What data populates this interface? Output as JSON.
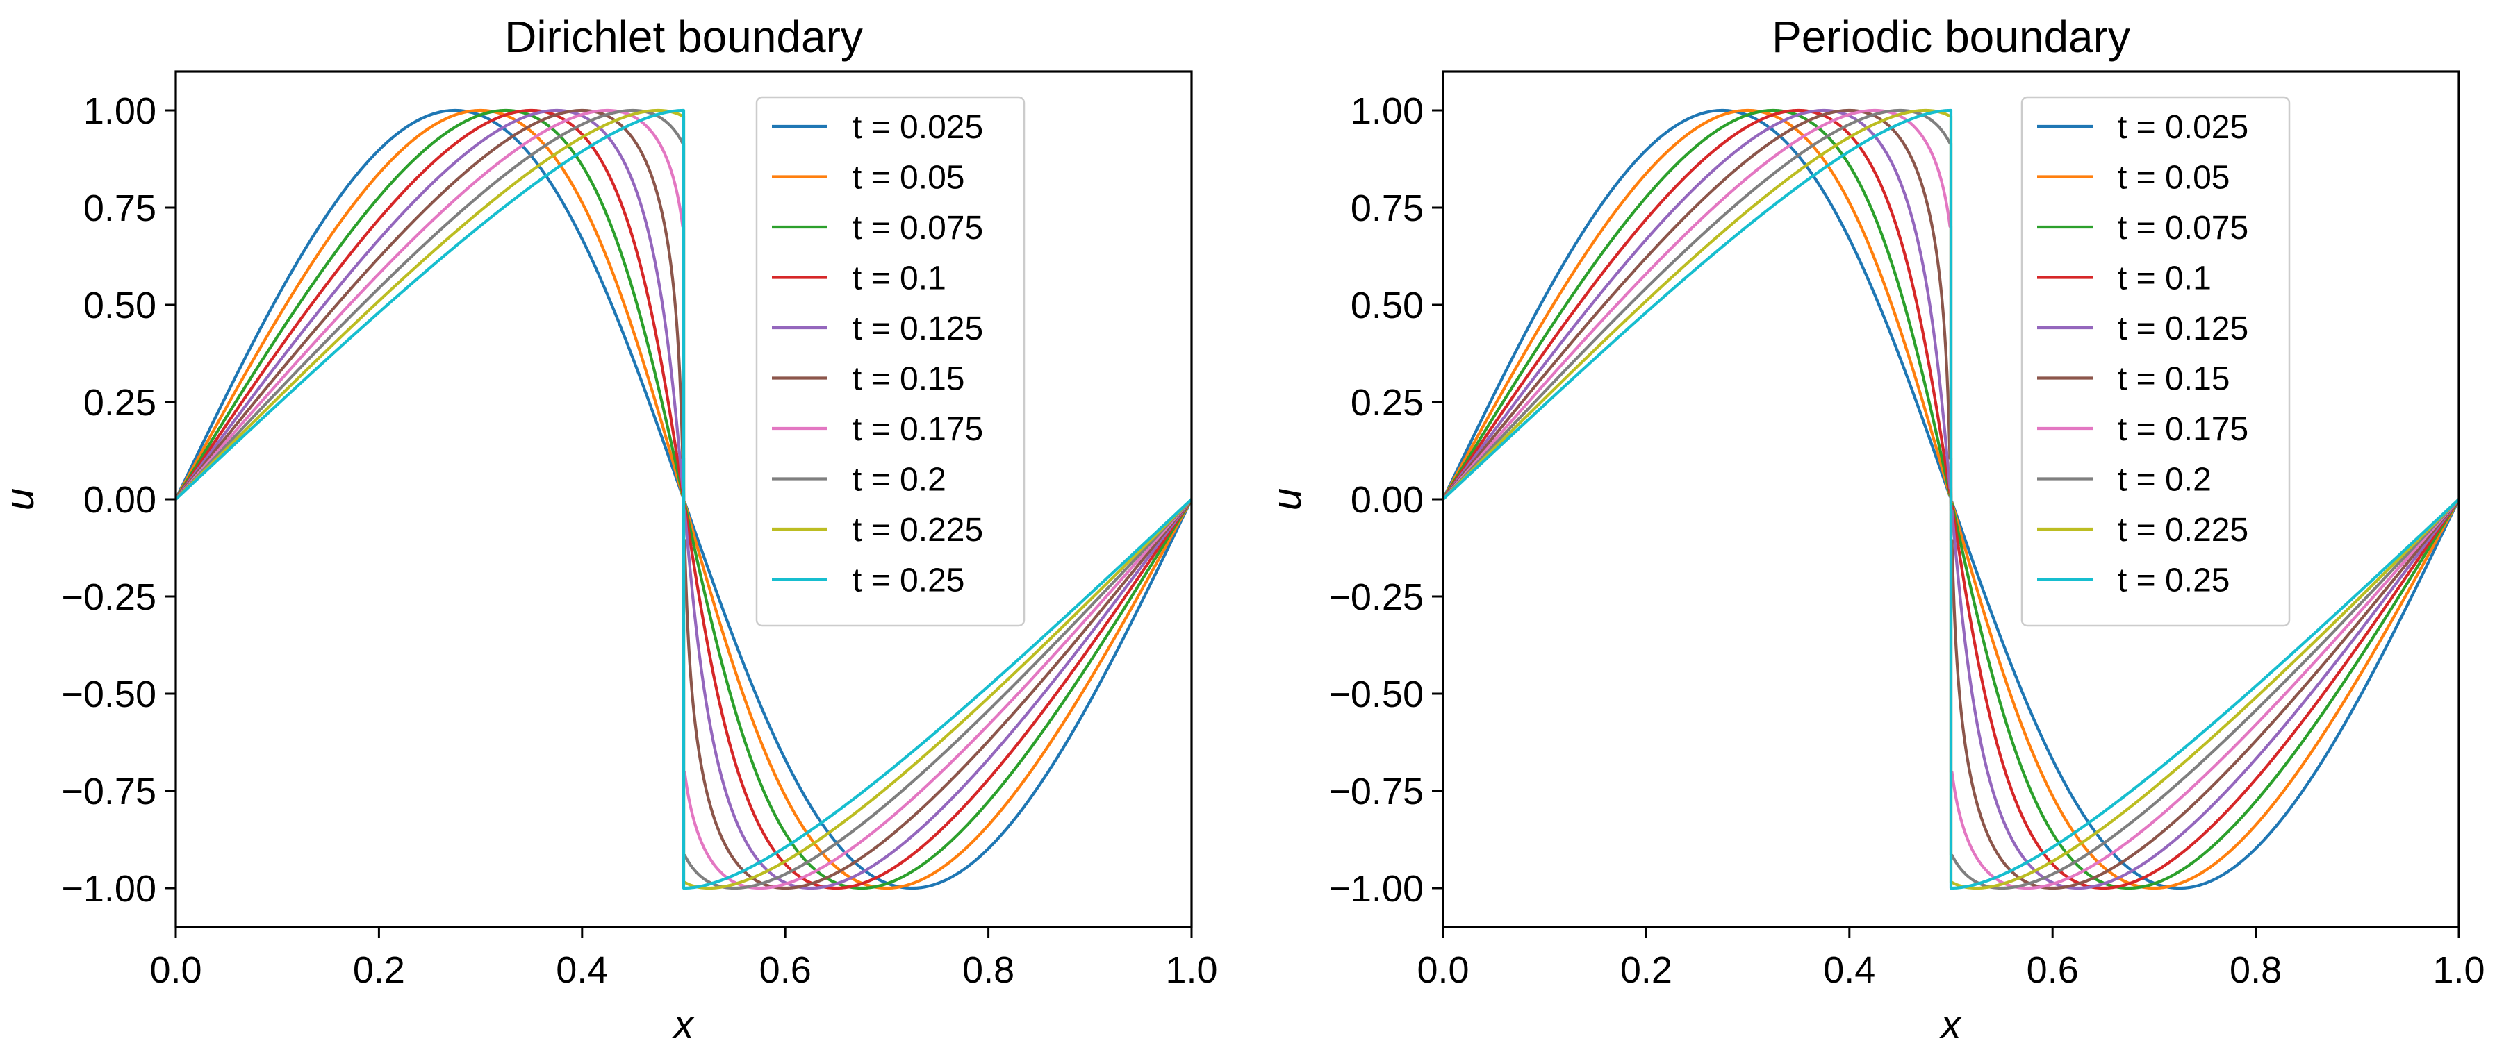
{
  "chart_data": [
    {
      "type": "line",
      "title": "Dirichlet boundary",
      "xlabel": "x",
      "ylabel": "u",
      "xlim": [
        0.0,
        1.0
      ],
      "ylim": [
        -1.1,
        1.1
      ],
      "grid": false,
      "legend_position": "top-right",
      "xticks": [
        0.0,
        0.2,
        0.4,
        0.6,
        0.8,
        1.0
      ],
      "xtick_labels": [
        "0.0",
        "0.2",
        "0.4",
        "0.6",
        "0.8",
        "1.0"
      ],
      "yticks": [
        1.0,
        0.75,
        0.5,
        0.25,
        0.0,
        -0.25,
        -0.5,
        -0.75,
        -1.0
      ],
      "ytick_labels": [
        "1.00",
        "0.75",
        "0.50",
        "0.25",
        "0.00",
        "−0.25",
        "−0.50",
        "−0.75",
        "−1.00"
      ],
      "curve_model": "u(x,t) = sin(2π·(x − u·t)) (inviscid Burgers, pre-shock), shock at x = 0.5",
      "series": [
        {
          "name": "t = 0.025",
          "t": 0.025,
          "color": "#1f77b4",
          "peak_x": 0.27,
          "trough_x": 0.73
        },
        {
          "name": "t = 0.05",
          "t": 0.05,
          "color": "#ff7f0e",
          "peak_x": 0.3,
          "trough_x": 0.7
        },
        {
          "name": "t = 0.075",
          "t": 0.075,
          "color": "#2ca02c",
          "peak_x": 0.32,
          "trough_x": 0.68
        },
        {
          "name": "t = 0.1",
          "t": 0.1,
          "color": "#d62728",
          "peak_x": 0.35,
          "trough_x": 0.65
        },
        {
          "name": "t = 0.125",
          "t": 0.125,
          "color": "#9467bd",
          "peak_x": 0.38,
          "trough_x": 0.62
        },
        {
          "name": "t = 0.15",
          "t": 0.15,
          "color": "#8c564b",
          "peak_x": 0.4,
          "trough_x": 0.6
        },
        {
          "name": "t = 0.175",
          "t": 0.175,
          "color": "#e377c2",
          "peak_x": 0.43,
          "trough_x": 0.57
        },
        {
          "name": "t = 0.2",
          "t": 0.2,
          "color": "#7f7f7f",
          "peak_x": 0.45,
          "trough_x": 0.55
        },
        {
          "name": "t = 0.225",
          "t": 0.225,
          "color": "#bcbd22",
          "peak_x": 0.48,
          "trough_x": 0.52
        },
        {
          "name": "t = 0.25",
          "t": 0.25,
          "color": "#17becf",
          "peak_x": 0.5,
          "trough_x": 0.5
        }
      ]
    },
    {
      "type": "line",
      "title": "Periodic boundary",
      "xlabel": "x",
      "ylabel": "u",
      "xlim": [
        0.0,
        1.0
      ],
      "ylim": [
        -1.1,
        1.1
      ],
      "grid": false,
      "legend_position": "top-right",
      "xticks": [
        0.0,
        0.2,
        0.4,
        0.6,
        0.8,
        1.0
      ],
      "xtick_labels": [
        "0.0",
        "0.2",
        "0.4",
        "0.6",
        "0.8",
        "1.0"
      ],
      "yticks": [
        1.0,
        0.75,
        0.5,
        0.25,
        0.0,
        -0.25,
        -0.5,
        -0.75,
        -1.0
      ],
      "ytick_labels": [
        "1.00",
        "0.75",
        "0.50",
        "0.25",
        "0.00",
        "−0.25",
        "−0.50",
        "−0.75",
        "−1.00"
      ],
      "curve_model": "u(x,t) = sin(2π·(x − u·t)) (inviscid Burgers, pre-shock), shock at x = 0.5",
      "series": [
        {
          "name": "t = 0.025",
          "t": 0.025,
          "color": "#1f77b4",
          "peak_x": 0.27,
          "trough_x": 0.73
        },
        {
          "name": "t = 0.05",
          "t": 0.05,
          "color": "#ff7f0e",
          "peak_x": 0.3,
          "trough_x": 0.7
        },
        {
          "name": "t = 0.075",
          "t": 0.075,
          "color": "#2ca02c",
          "peak_x": 0.32,
          "trough_x": 0.68
        },
        {
          "name": "t = 0.1",
          "t": 0.1,
          "color": "#d62728",
          "peak_x": 0.35,
          "trough_x": 0.65
        },
        {
          "name": "t = 0.125",
          "t": 0.125,
          "color": "#9467bd",
          "peak_x": 0.38,
          "trough_x": 0.62
        },
        {
          "name": "t = 0.15",
          "t": 0.15,
          "color": "#8c564b",
          "peak_x": 0.4,
          "trough_x": 0.6
        },
        {
          "name": "t = 0.175",
          "t": 0.175,
          "color": "#e377c2",
          "peak_x": 0.43,
          "trough_x": 0.57
        },
        {
          "name": "t = 0.2",
          "t": 0.2,
          "color": "#7f7f7f",
          "peak_x": 0.45,
          "trough_x": 0.55
        },
        {
          "name": "t = 0.225",
          "t": 0.225,
          "color": "#bcbd22",
          "peak_x": 0.48,
          "trough_x": 0.52
        },
        {
          "name": "t = 0.25",
          "t": 0.25,
          "color": "#17becf",
          "peak_x": 0.5,
          "trough_x": 0.5
        }
      ]
    }
  ]
}
